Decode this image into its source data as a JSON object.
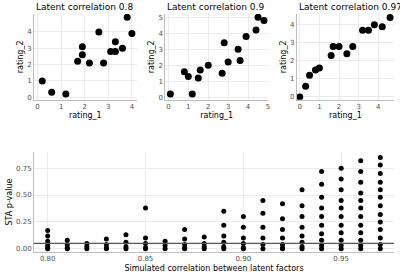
{
  "chart_data": [
    {
      "type": "scatter",
      "title": "Latent correlation 0.8",
      "x_label": "rating_1",
      "y_label": "rating_2",
      "color": "#000000",
      "marker": "circle",
      "grid": true,
      "x": [
        0.2,
        0.6,
        1.2,
        1.7,
        1.9,
        1.9,
        2.2,
        2.6,
        2.8,
        3.1,
        3.3,
        3.3,
        3.6,
        3.8,
        4.0
      ],
      "values": [
        1.0,
        0.3,
        0.2,
        2.2,
        3.1,
        2.6,
        2.1,
        4.0,
        2.1,
        2.8,
        2.8,
        3.4,
        3.0,
        4.9,
        3.9
      ],
      "xlim": [
        -0.15,
        4.2
      ],
      "ylim": [
        -0.15,
        5.1
      ],
      "xticks": [
        0,
        1,
        2,
        3,
        4
      ],
      "yticks": [
        0,
        1,
        2,
        3,
        4
      ]
    },
    {
      "type": "scatter",
      "title": "Latent correlation 0.9",
      "x_label": "rating_1",
      "y_label": "rating_2",
      "color": "#000000",
      "marker": "circle",
      "grid": true,
      "x": [
        0.1,
        0.8,
        1.0,
        1.2,
        1.5,
        1.6,
        2.0,
        2.7,
        2.8,
        3.0,
        3.5,
        3.6,
        3.9,
        4.4,
        4.5,
        4.8
      ],
      "values": [
        0.2,
        1.6,
        1.3,
        0.2,
        1.2,
        1.7,
        2.0,
        1.5,
        3.4,
        2.2,
        3.0,
        2.3,
        3.8,
        4.2,
        5.0,
        4.8
      ],
      "xlim": [
        -0.15,
        5.0
      ],
      "ylim": [
        -0.15,
        5.2
      ],
      "xticks": [
        0,
        1,
        2,
        3,
        4,
        5
      ],
      "yticks": [
        0,
        1,
        2,
        3,
        4,
        5
      ]
    },
    {
      "type": "scatter",
      "title": "Latent correlation 0.97",
      "x_label": "rating_1",
      "y_label": "rating_2",
      "color": "#000000",
      "marker": "circle",
      "grid": true,
      "x": [
        0.0,
        0.3,
        0.5,
        0.8,
        1.0,
        1.6,
        1.7,
        2.0,
        2.4,
        2.7,
        3.2,
        3.5,
        3.8,
        4.2,
        4.6
      ],
      "values": [
        0.0,
        0.6,
        1.2,
        1.5,
        1.6,
        2.3,
        2.8,
        2.8,
        2.4,
        2.8,
        3.7,
        3.7,
        4.0,
        3.9,
        4.4
      ],
      "xlim": [
        -0.15,
        4.8
      ],
      "ylim": [
        -0.15,
        4.6
      ],
      "xticks": [
        0,
        1,
        2,
        3,
        4
      ],
      "yticks": [
        0,
        1,
        2,
        3,
        4
      ]
    },
    {
      "type": "scatter",
      "x_label": "Simulated correlation between latent factors",
      "y_label": "STA p-value",
      "color": "#000000",
      "marker": "circle",
      "grid": true,
      "hline": 0.05,
      "x": [
        0.8,
        0.8,
        0.8,
        0.8,
        0.8,
        0.8,
        0.81,
        0.81,
        0.81,
        0.81,
        0.82,
        0.82,
        0.82,
        0.83,
        0.83,
        0.83,
        0.83,
        0.84,
        0.84,
        0.84,
        0.84,
        0.85,
        0.85,
        0.85,
        0.85,
        0.85,
        0.86,
        0.86,
        0.86,
        0.87,
        0.87,
        0.87,
        0.87,
        0.87,
        0.88,
        0.88,
        0.88,
        0.88,
        0.89,
        0.89,
        0.89,
        0.89,
        0.89,
        0.89,
        0.9,
        0.9,
        0.9,
        0.9,
        0.9,
        0.9,
        0.91,
        0.91,
        0.91,
        0.91,
        0.91,
        0.91,
        0.92,
        0.92,
        0.92,
        0.92,
        0.92,
        0.92,
        0.92,
        0.93,
        0.93,
        0.93,
        0.93,
        0.93,
        0.93,
        0.93,
        0.93,
        0.94,
        0.94,
        0.94,
        0.94,
        0.94,
        0.94,
        0.94,
        0.94,
        0.94,
        0.94,
        0.95,
        0.95,
        0.95,
        0.95,
        0.95,
        0.95,
        0.95,
        0.95,
        0.95,
        0.95,
        0.95,
        0.96,
        0.96,
        0.96,
        0.96,
        0.96,
        0.96,
        0.96,
        0.96,
        0.96,
        0.96,
        0.96,
        0.96,
        0.97,
        0.97,
        0.97,
        0.97,
        0.97,
        0.97,
        0.97,
        0.97,
        0.97,
        0.97,
        0.97,
        0.97,
        0.97
      ],
      "values": [
        0.17,
        0.12,
        0.07,
        0.03,
        0.01,
        0,
        0.08,
        0.04,
        0.01,
        0,
        0.05,
        0.02,
        0,
        0.09,
        0.04,
        0.01,
        0,
        0.13,
        0.06,
        0.02,
        0,
        0.38,
        0.1,
        0.05,
        0.01,
        0,
        0.07,
        0.03,
        0,
        0.18,
        0.09,
        0.04,
        0.01,
        0,
        0.11,
        0.05,
        0.02,
        0,
        0.35,
        0.22,
        0.12,
        0.06,
        0.02,
        0,
        0.3,
        0.2,
        0.1,
        0.05,
        0.01,
        0,
        0.45,
        0.33,
        0.2,
        0.1,
        0.04,
        0,
        0.42,
        0.28,
        0.18,
        0.1,
        0.04,
        0.01,
        0,
        0.55,
        0.4,
        0.3,
        0.2,
        0.12,
        0.06,
        0.02,
        0,
        0.72,
        0.6,
        0.48,
        0.38,
        0.3,
        0.22,
        0.14,
        0.08,
        0.03,
        0,
        0.75,
        0.65,
        0.55,
        0.45,
        0.38,
        0.3,
        0.22,
        0.15,
        0.08,
        0.03,
        0,
        0.82,
        0.72,
        0.62,
        0.52,
        0.45,
        0.38,
        0.3,
        0.22,
        0.15,
        0.08,
        0.03,
        0,
        0.85,
        0.78,
        0.7,
        0.62,
        0.55,
        0.48,
        0.4,
        0.32,
        0.25,
        0.18,
        0.1,
        0.04,
        0
      ],
      "xlim": [
        0.793,
        0.977
      ],
      "ylim": [
        -0.03,
        0.9
      ],
      "xticks": [
        {
          "value": 0.8,
          "label": "0.80"
        },
        0.85,
        {
          "value": 0.9,
          "label": "0.90"
        },
        0.95
      ],
      "yticks": [
        {
          "value": 0,
          "label": "0.00"
        },
        0.25,
        {
          "value": 0.5,
          "label": "0.50"
        },
        0.75
      ]
    }
  ]
}
